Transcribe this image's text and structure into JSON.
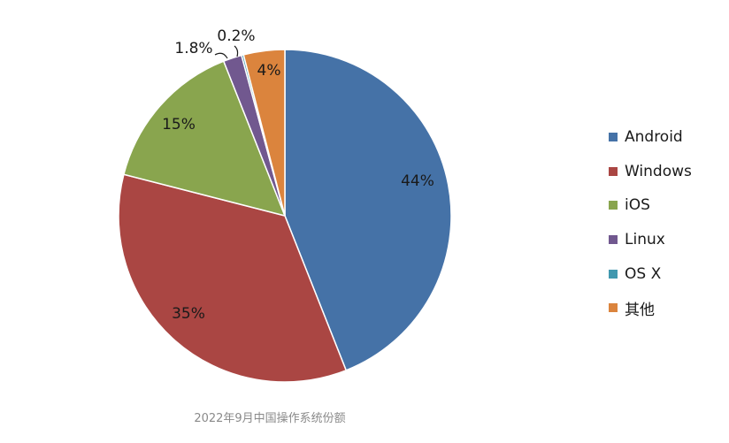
{
  "chart_data": {
    "type": "pie",
    "caption": "2022年9月中国操作系统份额",
    "slices": [
      {
        "name": "Android",
        "value": 44,
        "label": "44%",
        "color": "#4572a7"
      },
      {
        "name": "Windows",
        "value": 35,
        "label": "35%",
        "color": "#aa4643"
      },
      {
        "name": "iOS",
        "value": 15,
        "label": "15%",
        "color": "#89a54e"
      },
      {
        "name": "Linux",
        "value": 1.8,
        "label": "1.8%",
        "color": "#71588f"
      },
      {
        "name": "OS X",
        "value": 0.2,
        "label": "0.2%",
        "color": "#4198af"
      },
      {
        "name": "其他",
        "value": 4,
        "label": "4%",
        "color": "#db843d"
      }
    ],
    "legend_position": "right"
  }
}
